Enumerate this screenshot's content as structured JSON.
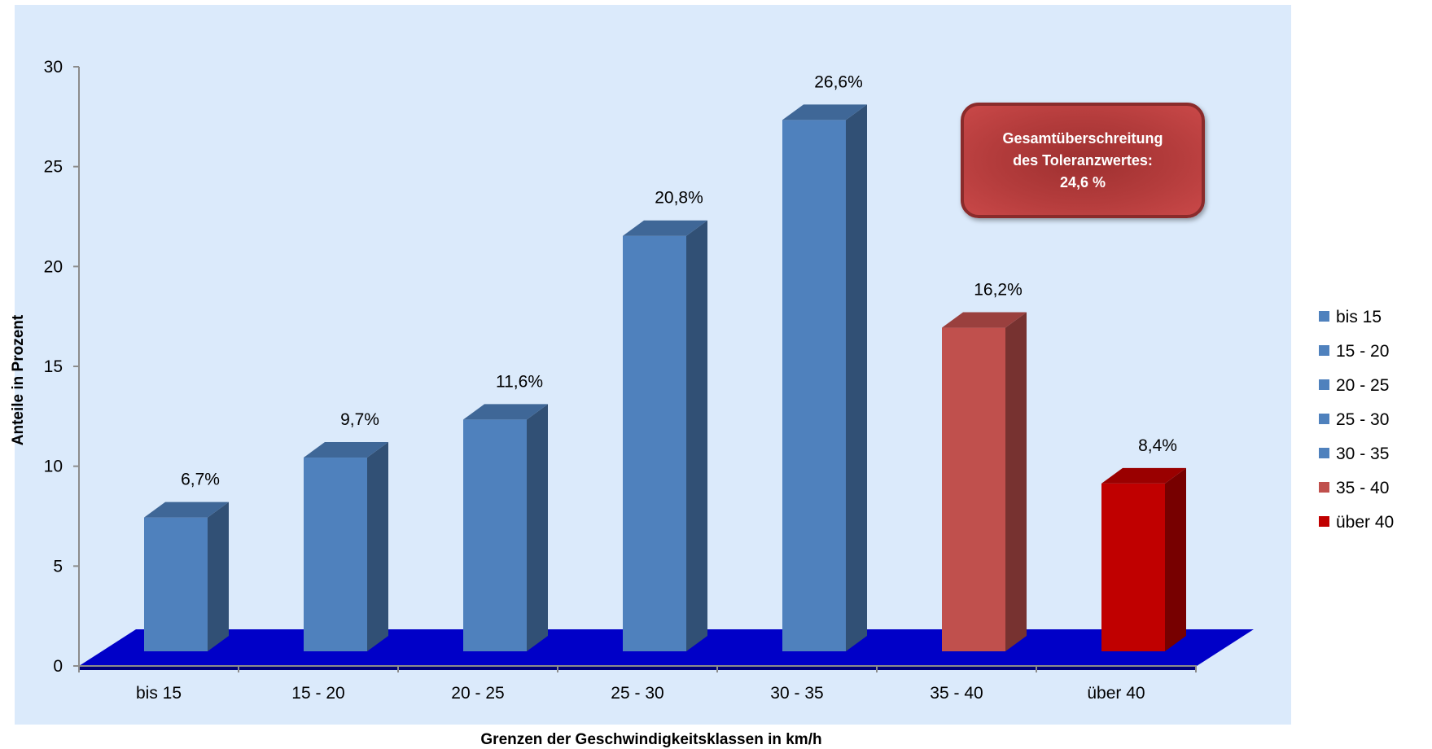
{
  "chart_data": {
    "type": "bar",
    "title": "",
    "xlabel": "Grenzen der Geschwindigkeitsklassen in km/h",
    "ylabel": "Anteile in Prozent",
    "ylim": [
      0,
      30
    ],
    "yticks": [
      0,
      5,
      10,
      15,
      20,
      25,
      30
    ],
    "categories": [
      "bis 15",
      "15 - 20",
      "20 - 25",
      "25 - 30",
      "30 - 35",
      "35 - 40",
      "über 40"
    ],
    "values": [
      6.7,
      9.7,
      11.6,
      20.8,
      26.6,
      16.2,
      8.4
    ],
    "data_labels": [
      "6,7%",
      "9,7%",
      "11,6%",
      "20,8%",
      "26,6%",
      "16,2%",
      "8,4%"
    ],
    "colors": [
      "#4f81bd",
      "#4f81bd",
      "#4f81bd",
      "#4f81bd",
      "#4f81bd",
      "#c0504d",
      "#c00000"
    ],
    "legend": {
      "placement": "right",
      "entries": [
        "bis 15",
        "15 - 20",
        "20 - 25",
        "25 - 30",
        "30 - 35",
        "35 - 40",
        "über 40"
      ]
    },
    "style": {
      "plot_background": "#dbeafb",
      "floor_color": "#0000c8",
      "grid": false,
      "three_d": true
    },
    "annotation": {
      "lines": [
        "Gesamtüberschreitung",
        "des Toleranzwertes:",
        "24,6 %"
      ],
      "fill": "#b43c3c",
      "text_color": "#ffffff"
    }
  }
}
